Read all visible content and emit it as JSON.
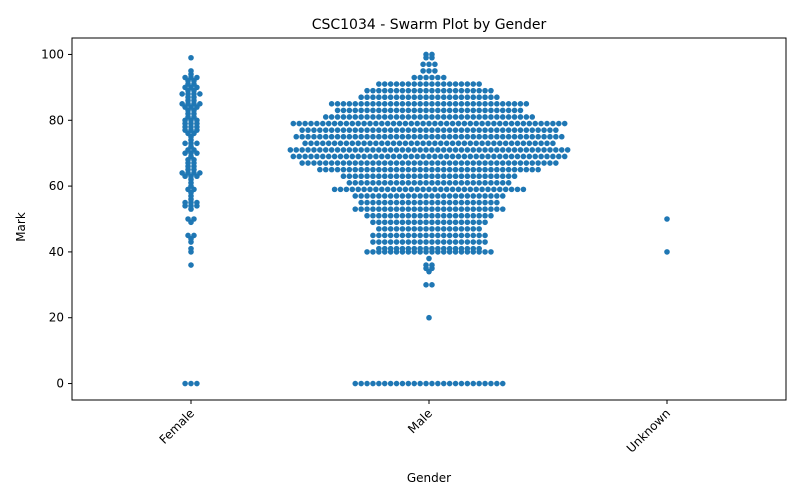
{
  "chart_data": {
    "type": "scatter",
    "subtype": "swarm",
    "title": "CSC1034 - Swarm Plot by Gender",
    "xlabel": "Gender",
    "ylabel": "Mark",
    "categories": [
      "Female",
      "Male",
      "Unknown"
    ],
    "ylim": [
      -5,
      105
    ],
    "yticks": [
      0,
      20,
      40,
      60,
      80,
      100
    ],
    "grid": false,
    "point_color": "#1f77b4",
    "series": [
      {
        "category": "Female",
        "values": [
          0,
          0,
          0,
          36,
          40,
          41,
          43,
          44,
          45,
          45,
          49,
          50,
          50,
          53,
          54,
          54,
          54,
          55,
          55,
          55,
          56,
          57,
          58,
          59,
          59,
          60,
          61,
          62,
          63,
          63,
          63,
          64,
          64,
          64,
          64,
          65,
          65,
          66,
          66,
          67,
          67,
          68,
          68,
          69,
          70,
          70,
          70,
          71,
          71,
          72,
          73,
          73,
          73,
          74,
          75,
          76,
          76,
          77,
          77,
          77,
          78,
          78,
          78,
          79,
          79,
          79,
          80,
          80,
          80,
          81,
          81,
          82,
          82,
          83,
          83,
          84,
          84,
          84,
          85,
          85,
          85,
          85,
          86,
          86,
          87,
          87,
          88,
          88,
          88,
          88,
          89,
          89,
          90,
          90,
          90,
          91,
          91,
          92,
          92,
          93,
          93,
          93,
          94,
          95,
          99
        ]
      },
      {
        "category": "Male",
        "values": [
          0,
          0,
          0,
          0,
          0,
          0,
          0,
          0,
          0,
          0,
          0,
          0,
          0,
          0,
          0,
          0,
          0,
          0,
          0,
          0,
          0,
          0,
          0,
          0,
          0,
          0,
          20,
          30,
          30,
          34,
          35,
          35,
          36,
          36,
          38,
          40,
          40,
          40,
          40,
          40,
          40,
          40,
          40,
          40,
          40,
          40,
          40,
          40,
          40,
          40,
          40,
          40,
          40,
          40,
          40,
          40,
          40,
          41,
          41,
          41,
          41,
          41,
          41,
          41,
          41,
          41,
          41,
          41,
          41,
          41,
          41,
          41,
          41,
          41,
          41,
          43,
          43,
          43,
          43,
          43,
          43,
          43,
          43,
          43,
          43,
          43,
          43,
          43,
          43,
          43,
          43,
          43,
          43,
          43,
          43,
          45,
          45,
          45,
          45,
          45,
          45,
          45,
          45,
          45,
          45,
          45,
          45,
          45,
          45,
          45,
          45,
          45,
          45,
          45,
          45,
          47,
          47,
          47,
          47,
          47,
          47,
          47,
          47,
          47,
          47,
          47,
          47,
          47,
          47,
          47,
          47,
          47,
          47,
          49,
          49,
          49,
          49,
          49,
          49,
          49,
          49,
          49,
          49,
          49,
          49,
          49,
          49,
          49,
          49,
          49,
          49,
          49,
          49,
          51,
          51,
          51,
          51,
          51,
          51,
          51,
          51,
          51,
          51,
          51,
          51,
          51,
          51,
          51,
          51,
          51,
          51,
          51,
          51,
          51,
          51,
          53,
          53,
          53,
          53,
          53,
          53,
          53,
          53,
          53,
          53,
          53,
          53,
          53,
          53,
          53,
          53,
          53,
          53,
          53,
          53,
          53,
          53,
          53,
          53,
          53,
          53,
          55,
          55,
          55,
          55,
          55,
          55,
          55,
          55,
          55,
          55,
          55,
          55,
          55,
          55,
          55,
          55,
          55,
          55,
          55,
          55,
          55,
          55,
          55,
          55,
          57,
          57,
          57,
          57,
          57,
          57,
          57,
          57,
          57,
          57,
          57,
          57,
          57,
          57,
          57,
          57,
          57,
          57,
          57,
          57,
          57,
          57,
          57,
          57,
          57,
          57,
          59,
          59,
          59,
          59,
          59,
          59,
          59,
          59,
          59,
          59,
          59,
          59,
          59,
          59,
          59,
          59,
          59,
          59,
          59,
          59,
          59,
          59,
          59,
          59,
          59,
          59,
          59,
          59,
          59,
          59,
          59,
          59,
          59,
          61,
          61,
          61,
          61,
          61,
          61,
          61,
          61,
          61,
          61,
          61,
          61,
          61,
          61,
          61,
          61,
          61,
          61,
          61,
          61,
          61,
          61,
          61,
          61,
          61,
          61,
          61,
          61,
          63,
          63,
          63,
          63,
          63,
          63,
          63,
          63,
          63,
          63,
          63,
          63,
          63,
          63,
          63,
          63,
          63,
          63,
          63,
          63,
          63,
          63,
          63,
          63,
          63,
          63,
          63,
          63,
          63,
          63,
          65,
          65,
          65,
          65,
          65,
          65,
          65,
          65,
          65,
          65,
          65,
          65,
          65,
          65,
          65,
          65,
          65,
          65,
          65,
          65,
          65,
          65,
          65,
          65,
          65,
          65,
          65,
          65,
          65,
          65,
          65,
          65,
          65,
          65,
          65,
          65,
          65,
          65,
          67,
          67,
          67,
          67,
          67,
          67,
          67,
          67,
          67,
          67,
          67,
          67,
          67,
          67,
          67,
          67,
          67,
          67,
          67,
          67,
          67,
          67,
          67,
          67,
          67,
          67,
          67,
          67,
          67,
          67,
          67,
          67,
          67,
          67,
          67,
          67,
          67,
          67,
          67,
          67,
          67,
          67,
          67,
          67,
          69,
          69,
          69,
          69,
          69,
          69,
          69,
          69,
          69,
          69,
          69,
          69,
          69,
          69,
          69,
          69,
          69,
          69,
          69,
          69,
          69,
          69,
          69,
          69,
          69,
          69,
          69,
          69,
          69,
          69,
          69,
          69,
          69,
          69,
          69,
          69,
          69,
          69,
          69,
          69,
          69,
          69,
          69,
          69,
          69,
          69,
          69,
          71,
          71,
          71,
          71,
          71,
          71,
          71,
          71,
          71,
          71,
          71,
          71,
          71,
          71,
          71,
          71,
          71,
          71,
          71,
          71,
          71,
          71,
          71,
          71,
          71,
          71,
          71,
          71,
          71,
          71,
          71,
          71,
          71,
          71,
          71,
          71,
          71,
          71,
          71,
          71,
          71,
          71,
          71,
          71,
          71,
          71,
          71,
          71,
          73,
          73,
          73,
          73,
          73,
          73,
          73,
          73,
          73,
          73,
          73,
          73,
          73,
          73,
          73,
          73,
          73,
          73,
          73,
          73,
          73,
          73,
          73,
          73,
          73,
          73,
          73,
          73,
          73,
          73,
          73,
          73,
          73,
          73,
          73,
          73,
          73,
          73,
          73,
          73,
          73,
          73,
          73,
          75,
          75,
          75,
          75,
          75,
          75,
          75,
          75,
          75,
          75,
          75,
          75,
          75,
          75,
          75,
          75,
          75,
          75,
          75,
          75,
          75,
          75,
          75,
          75,
          75,
          75,
          75,
          75,
          75,
          75,
          75,
          75,
          75,
          75,
          75,
          75,
          75,
          75,
          75,
          75,
          75,
          75,
          75,
          75,
          75,
          75,
          77,
          77,
          77,
          77,
          77,
          77,
          77,
          77,
          77,
          77,
          77,
          77,
          77,
          77,
          77,
          77,
          77,
          77,
          77,
          77,
          77,
          77,
          77,
          77,
          77,
          77,
          77,
          77,
          77,
          77,
          77,
          77,
          77,
          77,
          77,
          77,
          77,
          77,
          77,
          77,
          77,
          77,
          77,
          77,
          79,
          79,
          79,
          79,
          79,
          79,
          79,
          79,
          79,
          79,
          79,
          79,
          79,
          79,
          79,
          79,
          79,
          79,
          79,
          79,
          79,
          79,
          79,
          79,
          79,
          79,
          79,
          79,
          79,
          79,
          79,
          79,
          79,
          79,
          79,
          79,
          79,
          79,
          79,
          79,
          79,
          79,
          79,
          79,
          79,
          79,
          79,
          81,
          81,
          81,
          81,
          81,
          81,
          81,
          81,
          81,
          81,
          81,
          81,
          81,
          81,
          81,
          81,
          81,
          81,
          81,
          81,
          81,
          81,
          81,
          81,
          81,
          81,
          81,
          81,
          81,
          81,
          81,
          81,
          81,
          81,
          81,
          81,
          83,
          83,
          83,
          83,
          83,
          83,
          83,
          83,
          83,
          83,
          83,
          83,
          83,
          83,
          83,
          83,
          83,
          83,
          83,
          83,
          83,
          83,
          83,
          83,
          83,
          83,
          83,
          83,
          83,
          83,
          83,
          83,
          85,
          85,
          85,
          85,
          85,
          85,
          85,
          85,
          85,
          85,
          85,
          85,
          85,
          85,
          85,
          85,
          85,
          85,
          85,
          85,
          85,
          85,
          85,
          85,
          85,
          85,
          85,
          85,
          85,
          85,
          85,
          85,
          85,
          85,
          87,
          87,
          87,
          87,
          87,
          87,
          87,
          87,
          87,
          87,
          87,
          87,
          87,
          87,
          87,
          87,
          87,
          87,
          87,
          87,
          87,
          87,
          87,
          87,
          89,
          89,
          89,
          89,
          89,
          89,
          89,
          89,
          89,
          89,
          89,
          89,
          89,
          89,
          89,
          89,
          89,
          89,
          89,
          89,
          89,
          89,
          91,
          91,
          91,
          91,
          91,
          91,
          91,
          91,
          91,
          91,
          91,
          91,
          91,
          91,
          91,
          91,
          91,
          91,
          93,
          93,
          93,
          93,
          93,
          93,
          95,
          95,
          95,
          97,
          97,
          97,
          99,
          99,
          100,
          100
        ]
      },
      {
        "category": "Unknown",
        "values": [
          40,
          50
        ]
      }
    ]
  }
}
